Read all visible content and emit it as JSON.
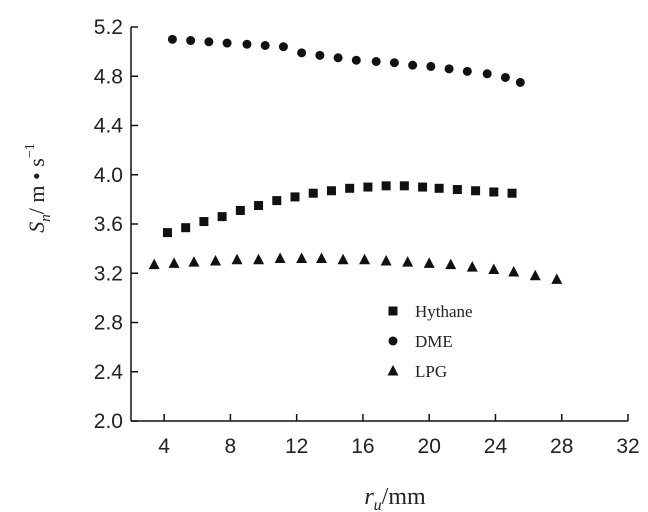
{
  "chart_data": {
    "type": "scatter",
    "xlabel": "r_u/mm",
    "ylabel": "S_n/ m • s^-1",
    "xlim": [
      2,
      32
    ],
    "ylim": [
      2.0,
      5.2
    ],
    "x_ticks": [
      "4",
      "8",
      "12",
      "16",
      "20",
      "24",
      "28",
      "32"
    ],
    "y_ticks": [
      "2.0",
      "2.4",
      "2.8",
      "3.2",
      "3.6",
      "4.0",
      "4.4",
      "4.8",
      "5.2"
    ],
    "grid": false,
    "legend_position": "center-right",
    "series": [
      {
        "name": "Hythane",
        "marker": "square",
        "x": [
          4.2,
          5.3,
          6.4,
          7.5,
          8.6,
          9.7,
          10.8,
          11.9,
          13.0,
          14.1,
          15.2,
          16.3,
          17.4,
          18.5,
          19.6,
          20.6,
          21.7,
          22.8,
          23.9,
          25.0
        ],
        "y": [
          3.53,
          3.57,
          3.62,
          3.66,
          3.71,
          3.75,
          3.79,
          3.82,
          3.85,
          3.87,
          3.89,
          3.9,
          3.91,
          3.91,
          3.9,
          3.89,
          3.88,
          3.87,
          3.86,
          3.85
        ]
      },
      {
        "name": "DME",
        "marker": "circle",
        "x": [
          4.5,
          5.6,
          6.7,
          7.8,
          9.0,
          10.1,
          11.2,
          12.3,
          13.4,
          14.5,
          15.6,
          16.8,
          17.9,
          19.0,
          20.1,
          21.2,
          22.3,
          23.5,
          24.6,
          25.5
        ],
        "y": [
          5.1,
          5.09,
          5.08,
          5.07,
          5.06,
          5.05,
          5.04,
          4.99,
          4.97,
          4.95,
          4.93,
          4.92,
          4.91,
          4.89,
          4.88,
          4.86,
          4.84,
          4.82,
          4.79,
          4.75
        ]
      },
      {
        "name": "LPG",
        "marker": "triangle",
        "x": [
          3.4,
          4.6,
          5.8,
          7.1,
          8.4,
          9.7,
          11.0,
          12.3,
          13.5,
          14.8,
          16.1,
          17.4,
          18.7,
          20.0,
          21.3,
          22.6,
          23.9,
          25.1,
          26.4,
          27.7
        ],
        "y": [
          3.27,
          3.28,
          3.29,
          3.3,
          3.31,
          3.31,
          3.32,
          3.32,
          3.32,
          3.31,
          3.31,
          3.3,
          3.29,
          3.28,
          3.27,
          3.25,
          3.23,
          3.21,
          3.18,
          3.15
        ]
      }
    ]
  }
}
